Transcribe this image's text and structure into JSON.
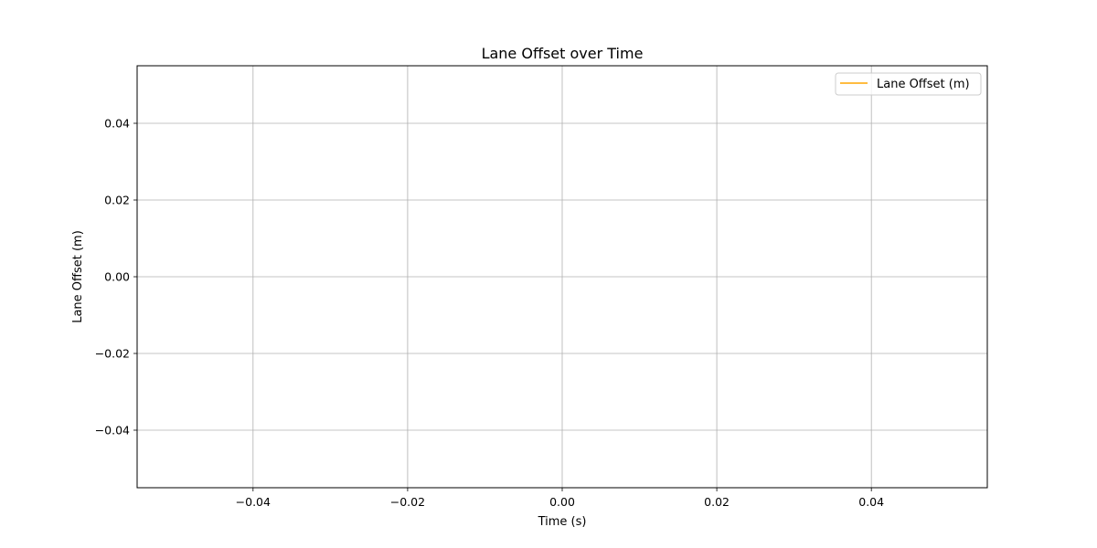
{
  "chart_data": {
    "type": "line",
    "title": "Lane Offset over Time",
    "xlabel": "Time (s)",
    "ylabel": "Lane Offset (m)",
    "xlim": [
      -0.055,
      0.055
    ],
    "ylim": [
      -0.055,
      0.055
    ],
    "x_ticks": [
      -0.04,
      -0.02,
      0.0,
      0.02,
      0.04
    ],
    "x_tick_labels": [
      "−0.04",
      "−0.02",
      "0.00",
      "0.02",
      "0.04"
    ],
    "y_ticks": [
      0.04,
      0.02,
      0.0,
      -0.02,
      -0.04
    ],
    "y_tick_labels": [
      "0.04",
      "0.02",
      "0.00",
      "−0.02",
      "−0.04"
    ],
    "grid": true,
    "legend_position": "top-right",
    "series": [
      {
        "name": "Lane Offset (m)",
        "color": "#ffa500",
        "x": [],
        "y": []
      }
    ]
  }
}
